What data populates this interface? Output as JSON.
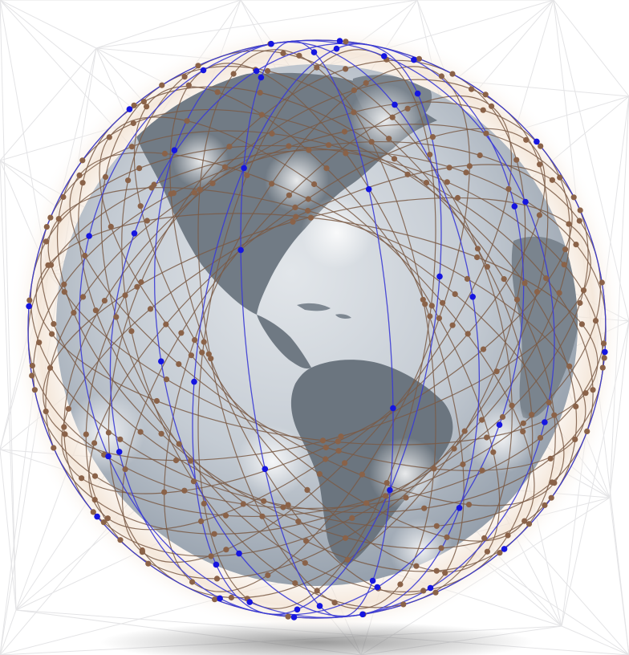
{
  "image": {
    "subject": "globe-with-satellite-constellation",
    "colors": {
      "background": "#ffffff",
      "web_lines": "#e4e4e6",
      "ocean_light": "#d3d8de",
      "ocean_dark": "#8e99a6",
      "land": "#6f7983",
      "land_light": "#9aa2ab",
      "halo": "#f4e6d8",
      "orbit_brown": "#7a5a45",
      "orbit_blue": "#3b3bd4",
      "sat_brown": "#8a6248",
      "sat_blue": "#1515e0",
      "shadow": "#8f8f8f"
    },
    "constellations": [
      {
        "name": "brown-mesh",
        "color": "#8a6248"
      },
      {
        "name": "blue-polar",
        "color": "#1515e0"
      }
    ]
  }
}
